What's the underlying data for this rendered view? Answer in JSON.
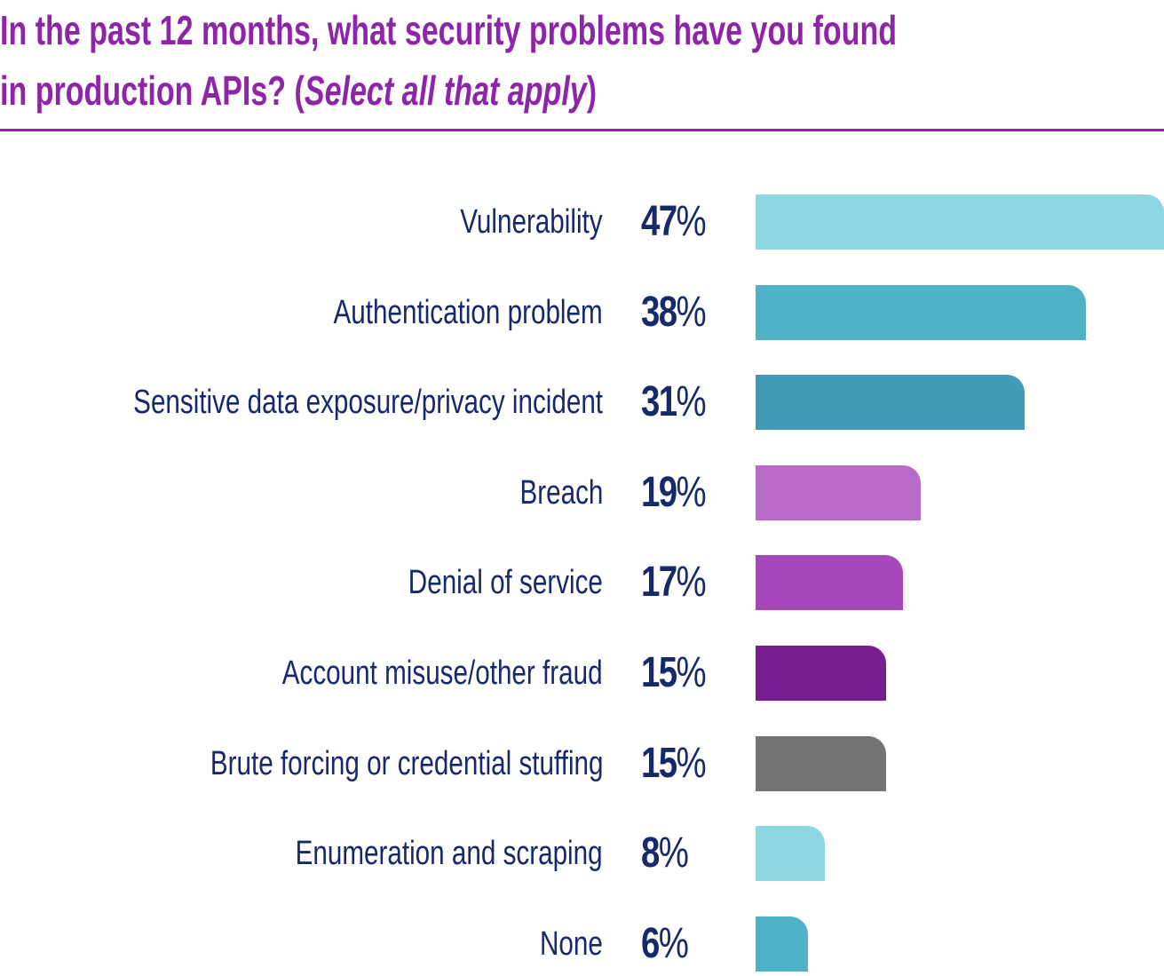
{
  "chart_data": {
    "type": "bar",
    "orientation": "horizontal",
    "title": "In the past 12 months, what security problems have you found in production APIs?",
    "subtitle": "Select all that apply",
    "unit": "%",
    "categories": [
      "Vulnerability",
      "Authentication problem",
      "Sensitive data exposure/privacy incident",
      "Breach",
      "Denial of service",
      "Account misuse/other fraud",
      "Brute forcing or credential stuffing",
      "Enumeration and scraping",
      "None"
    ],
    "values": [
      47,
      38,
      31,
      19,
      17,
      15,
      15,
      8,
      6
    ],
    "value_labels": [
      "47",
      "38",
      "31",
      "19",
      "17",
      "15",
      "15",
      "8",
      "6"
    ],
    "colors": [
      "#8dd7e3",
      "#4fb2c7",
      "#429ab9",
      "#b86bc6",
      "#a846bc",
      "#781e91",
      "#747476",
      "#8dd7e3",
      "#4fb2c7"
    ],
    "xlim": [
      0,
      47
    ],
    "grid": false,
    "legend": "none"
  },
  "header": {
    "title_line1": "In the past 12 months, what security problems have you found",
    "title_line2": "in production APIs? (",
    "title_italic": "Select all that apply",
    "title_close": ")"
  },
  "colors": {
    "title": "#8e24aa",
    "text": "#162a6b"
  }
}
